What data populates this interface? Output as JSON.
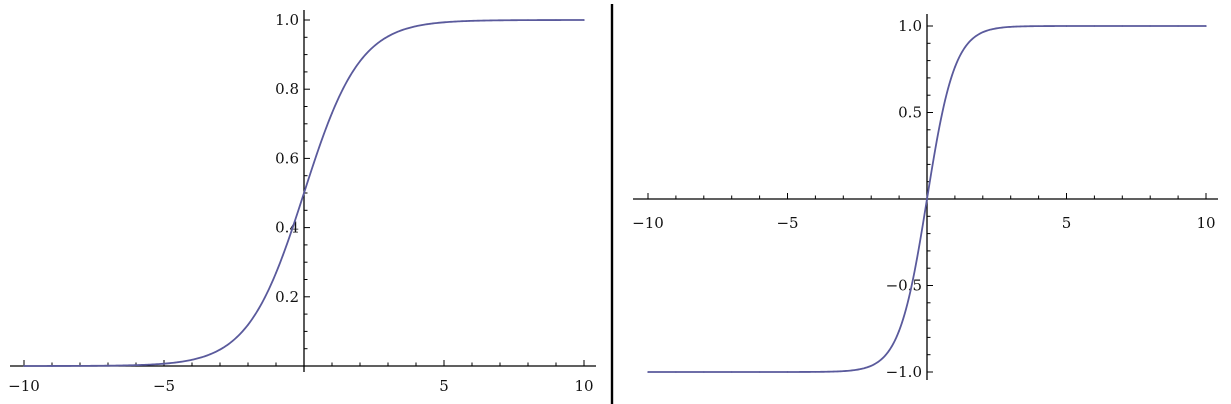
{
  "chart_data": [
    {
      "type": "line",
      "title": "",
      "xlabel": "",
      "ylabel": "",
      "xlim": [
        -10,
        10
      ],
      "ylim": [
        0,
        1
      ],
      "grid": false,
      "function": "logistic",
      "x_tick_labels": [
        "−10",
        "−5",
        "5",
        "10"
      ],
      "x_tick_values": [
        -10,
        -5,
        5,
        10
      ],
      "y_tick_labels": [
        "0.2",
        "0.4",
        "0.6",
        "0.8",
        "1.0"
      ],
      "y_tick_values": [
        0.2,
        0.4,
        0.6,
        0.8,
        1.0
      ],
      "series": [
        {
          "x": [
            -10,
            -9,
            -8,
            -7,
            -6,
            -5,
            -4,
            -3,
            -2,
            -1,
            0,
            1,
            2,
            3,
            4,
            5,
            6,
            7,
            8,
            9,
            10
          ],
          "y": [
            0.0,
            0.0001,
            0.0003,
            0.0009,
            0.0025,
            0.0067,
            0.018,
            0.047,
            0.119,
            0.269,
            0.5,
            0.731,
            0.881,
            0.953,
            0.982,
            0.993,
            0.998,
            0.999,
            1.0,
            1.0,
            1.0
          ]
        }
      ],
      "color": "#5a5a9c"
    },
    {
      "type": "line",
      "title": "",
      "xlabel": "",
      "ylabel": "",
      "xlim": [
        -10,
        10
      ],
      "ylim": [
        -1,
        1
      ],
      "grid": false,
      "function": "tanh",
      "x_tick_labels": [
        "−10",
        "−5",
        "5",
        "10"
      ],
      "x_tick_values": [
        -10,
        -5,
        5,
        10
      ],
      "y_tick_labels": [
        "−1.0",
        "−0.5",
        "0.5",
        "1.0"
      ],
      "y_tick_values": [
        -1.0,
        -0.5,
        0.5,
        1.0
      ],
      "series": [
        {
          "x": [
            -10,
            -9,
            -8,
            -7,
            -6,
            -5,
            -4,
            -3,
            -2,
            -1,
            0,
            1,
            2,
            3,
            4,
            5,
            6,
            7,
            8,
            9,
            10
          ],
          "y": [
            -1.0,
            -1.0,
            -1.0,
            -1.0,
            -1.0,
            -0.9999,
            -0.9993,
            -0.995,
            -0.964,
            -0.762,
            0.0,
            0.762,
            0.964,
            0.995,
            0.9993,
            0.9999,
            1.0,
            1.0,
            1.0,
            1.0,
            1.0
          ]
        }
      ],
      "color": "#5a5a9c"
    }
  ]
}
